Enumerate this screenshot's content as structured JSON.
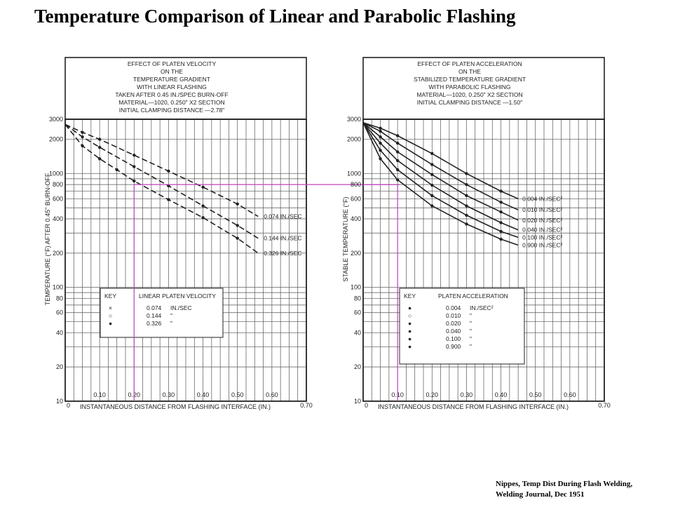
{
  "title": "Temperature Comparison of Linear and Parabolic Flashing",
  "citation": {
    "line1": "Nippes, Temp Dist During Flash Welding,",
    "line2": "Welding Journal, Dec 1951"
  },
  "colors": {
    "ink": "#222222",
    "grid": "#555555",
    "highlight": "#c040c0"
  },
  "chart_data": [
    {
      "type": "line",
      "y_scale": "log",
      "header": [
        "EFFECT OF PLATEN VELOCITY",
        "ON THE",
        "TEMPERATURE GRADIENT",
        "WITH LINEAR FLASHING",
        "TAKEN AFTER 0.45 IN./SPEC BURN-OFF",
        "MATERIAL—1020, 0.250\" X2 SECTION",
        "INITIAL CLAMPING DISTANCE —2.78\""
      ],
      "xlabel": "INSTANTANEOUS DISTANCE FROM FLASHING INTERFACE (IN.)",
      "ylabel": "TEMPERATURE (°F) AFTER 0.45\" BURN-OFF",
      "xlim": [
        0,
        0.7
      ],
      "ylim": [
        10,
        3000
      ],
      "x_ticks": [
        "0",
        "0.10",
        "0.20",
        "0.30",
        "0.40",
        "0.50",
        "0.60",
        "0.70"
      ],
      "y_ticks": [
        "10",
        "20",
        "40",
        "60",
        "80",
        "100",
        "200",
        "400",
        "600",
        "800",
        "1000",
        "2000",
        "3000"
      ],
      "key": {
        "title": "KEY",
        "heading": "LINEAR PLATEN VELOCITY",
        "entries": [
          {
            "marker": "×",
            "value": "0.074",
            "unit": "IN./SEC"
          },
          {
            "marker": "○",
            "value": "0.144",
            "unit": "\""
          },
          {
            "marker": "●",
            "value": "0.326",
            "unit": "\""
          }
        ]
      },
      "series": [
        {
          "name": "0.074 IN./SEC",
          "x": [
            0,
            0.05,
            0.1,
            0.2,
            0.3,
            0.4,
            0.5,
            0.56
          ],
          "y": [
            2700,
            2300,
            2000,
            1450,
            1050,
            760,
            540,
            420
          ]
        },
        {
          "name": "0.144 IN./SEC",
          "x": [
            0,
            0.05,
            0.1,
            0.2,
            0.3,
            0.4,
            0.5,
            0.56
          ],
          "y": [
            2700,
            2100,
            1700,
            1150,
            780,
            520,
            350,
            270
          ]
        },
        {
          "name": "0.326 IN./SEC",
          "x": [
            0,
            0.05,
            0.1,
            0.15,
            0.2,
            0.3,
            0.4,
            0.5,
            0.56
          ],
          "y": [
            2700,
            1750,
            1350,
            1080,
            860,
            590,
            410,
            270,
            200
          ]
        }
      ],
      "highlight": {
        "x": 0.2,
        "y": 800
      }
    },
    {
      "type": "line",
      "y_scale": "log",
      "header": [
        "EFFECT OF PLATEN ACCELERATION",
        "ON THE",
        "STABILIZED TEMPERATURE GRADIENT",
        "WITH PARABOLIC FLASHING",
        "MATERIAL—1020, 0.250\" X2 SECTION",
        "INITIAL CLAMPING DISTANCE —1.50\""
      ],
      "xlabel": "INSTANTANEOUS DISTANCE FROM FLASHING INTERFACE (IN.)",
      "ylabel": "STABLE TEMPERATURE (°F)",
      "xlim": [
        0,
        0.7
      ],
      "ylim": [
        10,
        3000
      ],
      "x_ticks": [
        "0",
        "0.10",
        "0.20",
        "0.30",
        "0.40",
        "0.50",
        "0.60",
        "0.70"
      ],
      "y_ticks": [
        "10",
        "20",
        "40",
        "60",
        "80",
        "100",
        "200",
        "400",
        "600",
        "800",
        "1000",
        "2000",
        "3000"
      ],
      "key": {
        "title": "KEY",
        "heading": "PLATEN ACCELERATION",
        "entries": [
          {
            "marker": "●",
            "value": "0.004",
            "unit": "IN./SEC²"
          },
          {
            "marker": "○",
            "value": "0.010",
            "unit": "\""
          },
          {
            "marker": "●",
            "value": "0.020",
            "unit": "\""
          },
          {
            "marker": "●",
            "value": "0.040",
            "unit": "\""
          },
          {
            "marker": "●",
            "value": "0.100",
            "unit": "\""
          },
          {
            "marker": "●",
            "value": "0.900",
            "unit": "\""
          }
        ]
      },
      "series": [
        {
          "name": "0.004 IN./SEC²",
          "x": [
            0,
            0.05,
            0.1,
            0.2,
            0.3,
            0.4,
            0.45
          ],
          "y": [
            2800,
            2500,
            2150,
            1500,
            1000,
            700,
            600
          ]
        },
        {
          "name": "0.010 IN./SEC²",
          "x": [
            0,
            0.05,
            0.1,
            0.2,
            0.3,
            0.4,
            0.45
          ],
          "y": [
            2800,
            2350,
            1850,
            1200,
            800,
            560,
            480
          ]
        },
        {
          "name": "0.020 IN./SEC²",
          "x": [
            0,
            0.05,
            0.1,
            0.2,
            0.3,
            0.4,
            0.45
          ],
          "y": [
            2800,
            2100,
            1550,
            980,
            640,
            460,
            390
          ]
        },
        {
          "name": "0.040 IN./SEC²",
          "x": [
            0,
            0.05,
            0.1,
            0.2,
            0.3,
            0.4,
            0.45
          ],
          "y": [
            2800,
            1850,
            1300,
            790,
            520,
            370,
            320
          ]
        },
        {
          "name": "0.100 IN./SEC²",
          "x": [
            0,
            0.05,
            0.1,
            0.2,
            0.3,
            0.4,
            0.45
          ],
          "y": [
            2800,
            1600,
            1080,
            640,
            430,
            310,
            275
          ]
        },
        {
          "name": "0.900 IN./SEC²",
          "x": [
            0,
            0.05,
            0.1,
            0.2,
            0.3,
            0.4,
            0.45
          ],
          "y": [
            2800,
            1350,
            880,
            520,
            360,
            265,
            235
          ]
        }
      ],
      "highlight": {
        "x": 0.1,
        "y": 800
      }
    }
  ]
}
